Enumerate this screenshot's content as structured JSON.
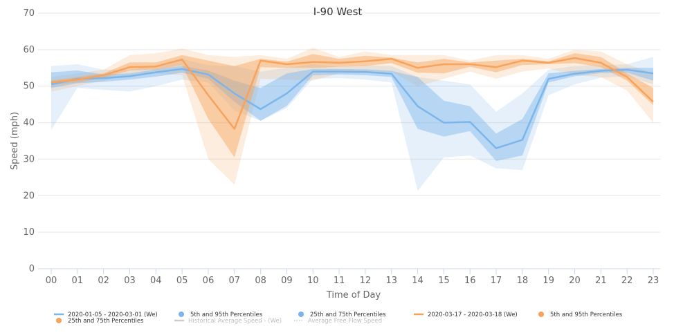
{
  "chart_data": {
    "type": "line",
    "title": "I-90 West",
    "xlabel": "Time of Day",
    "ylabel": "Speed (mph)",
    "ylim": [
      0,
      70
    ],
    "yticks": [
      "0",
      "10",
      "20",
      "30",
      "40",
      "50",
      "60",
      "70"
    ],
    "categories": [
      "00",
      "01",
      "02",
      "03",
      "04",
      "05",
      "06",
      "07",
      "08",
      "09",
      "10",
      "11",
      "12",
      "13",
      "14",
      "15",
      "16",
      "17",
      "18",
      "19",
      "20",
      "21",
      "22",
      "23"
    ],
    "grid": true,
    "legend_position": "bottom",
    "series": [
      {
        "name": "2020-01-05 - 2020-03-01 (We)",
        "color": "#7cb5ec",
        "values": [
          50.5,
          52,
          52.2,
          52.7,
          53.8,
          54.7,
          53.2,
          48,
          43.7,
          48,
          54,
          54,
          53.9,
          53.4,
          44.5,
          40,
          40.2,
          33,
          35.3,
          52,
          53.4,
          54.2,
          54.5,
          53.5
        ],
        "p5_p95": {
          "name": "5th and 95th Percentiles",
          "low": [
            38,
            49.5,
            49,
            48.5,
            50,
            51.8,
            51,
            43.3,
            40.5,
            44,
            52,
            52.2,
            51.8,
            51,
            21.3,
            30.5,
            31,
            27.5,
            27,
            47.5,
            50.5,
            52.3,
            52.7,
            50.5
          ],
          "high": [
            55.5,
            56,
            54.5,
            54.5,
            55.5,
            57.5,
            55.7,
            55.5,
            54,
            55,
            56,
            55.3,
            55.7,
            55.5,
            52.5,
            51.5,
            50.5,
            43,
            48,
            54.5,
            55.5,
            55.7,
            56,
            58
          ]
        },
        "p25_p75": {
          "name": "25th and 75th Percentiles",
          "low": [
            49.5,
            50.8,
            51.2,
            51.8,
            52.6,
            53.7,
            52,
            45.7,
            40.5,
            44.6,
            53,
            53.2,
            53,
            52.5,
            38.3,
            36.2,
            37.7,
            29.5,
            31,
            51,
            52.7,
            53.6,
            53.7,
            51.5
          ],
          "high": [
            53.8,
            54.3,
            53.2,
            53.5,
            54.6,
            55.5,
            54.3,
            51.5,
            49.5,
            53.5,
            54.7,
            54.7,
            54.6,
            54.2,
            52.5,
            46,
            44.5,
            37,
            41,
            53.5,
            54.2,
            54.7,
            55,
            55
          ]
        }
      },
      {
        "name": "2020-03-17 - 2020-03-18 (We)",
        "color": "#f7a35c",
        "values": [
          51,
          51.8,
          53,
          55.2,
          55.4,
          57.3,
          47.5,
          38.3,
          57,
          56,
          56.6,
          56.4,
          56.8,
          57.5,
          55,
          56,
          56,
          55.2,
          57,
          56.4,
          57.7,
          56.4,
          52.5,
          45.7
        ],
        "p5_p95": {
          "name": "5th and 95th Percentiles",
          "low": [
            48.5,
            50,
            51.5,
            53,
            53.5,
            53,
            30,
            23,
            52,
            51.8,
            51.5,
            53.5,
            53.5,
            54,
            50,
            52,
            54,
            52,
            54,
            54.8,
            53,
            52.5,
            48.8,
            40
          ],
          "high": [
            52.5,
            53.5,
            54.5,
            58.5,
            59,
            60.3,
            58.5,
            58,
            58.5,
            57.5,
            60.5,
            58,
            59.5,
            58.5,
            58.5,
            58.5,
            57,
            58.5,
            58.5,
            57.5,
            60,
            59.5,
            56,
            53.5
          ]
        },
        "p25_p75": {
          "name": "25th and 75th Percentiles",
          "low": [
            50.3,
            51,
            52.3,
            54.3,
            54.5,
            55.7,
            41,
            30.5,
            55.2,
            55,
            55,
            55.3,
            55.5,
            56.3,
            53.7,
            53.5,
            55.3,
            53.8,
            55.8,
            56,
            56.3,
            55.2,
            51.5,
            44.8
          ],
          "high": [
            51.5,
            52.5,
            53.5,
            56.5,
            56.5,
            58.5,
            57,
            55.5,
            57.5,
            56.7,
            58.8,
            57.5,
            58.3,
            57.8,
            56.5,
            57.5,
            56.5,
            57,
            57.5,
            56.8,
            59,
            58,
            53.5,
            49.5
          ]
        }
      }
    ],
    "legend": [
      {
        "label": "2020-01-05 - 2020-03-01 (We)",
        "symbol": "line",
        "color": "#7cb5ec"
      },
      {
        "label": "5th and 95th Percentiles",
        "symbol": "dot",
        "color": "#7cb5ec"
      },
      {
        "label": "25th and 75th Percentiles",
        "symbol": "dot",
        "color": "#7cb5ec"
      },
      {
        "label": "2020-03-17 - 2020-03-18 (We)",
        "symbol": "line",
        "color": "#f7a35c"
      },
      {
        "label": "5th and 95th Percentiles",
        "symbol": "dot",
        "color": "#f7a35c"
      },
      {
        "label": "25th and 75th Percentiles",
        "symbol": "dot",
        "color": "#f7a35c"
      },
      {
        "label": "Historical Average Speed - (We)",
        "symbol": "line",
        "color": "#cccccc",
        "muted": true
      },
      {
        "label": "Average Free Flow Speed",
        "symbol": "dotted",
        "color": "#cccccc",
        "muted": true
      }
    ]
  }
}
